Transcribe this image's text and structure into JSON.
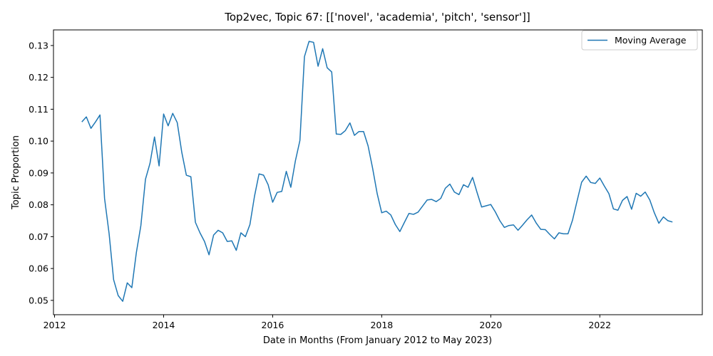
{
  "chart_data": {
    "type": "line",
    "title": "Top2vec, Topic 67: [['novel', 'academia', 'pitch', 'sensor']]",
    "xlabel": "Date in Months (From January 2012 to May 2023)",
    "ylabel": "Topic Proportion",
    "xlim": [
      2011.98,
      2023.88
    ],
    "ylim": [
      0.0455,
      0.1349
    ],
    "x_ticks": [
      2012,
      2014,
      2016,
      2018,
      2020,
      2022
    ],
    "y_ticks": [
      0.05,
      0.06,
      0.07,
      0.08,
      0.09,
      0.1,
      0.11,
      0.12,
      0.13
    ],
    "y_tick_labels": [
      "0.05",
      "0.06",
      "0.07",
      "0.08",
      "0.09",
      "0.10",
      "0.11",
      "0.12",
      "0.13"
    ],
    "grid": false,
    "legend": {
      "position": "top-right"
    },
    "colors": {
      "series": "#1f77b4"
    },
    "series": [
      {
        "name": "Moving Average",
        "x": [
          2012.5,
          2012.583,
          2012.667,
          2012.75,
          2012.833,
          2012.917,
          2013.0,
          2013.083,
          2013.167,
          2013.25,
          2013.333,
          2013.417,
          2013.5,
          2013.583,
          2013.667,
          2013.75,
          2013.833,
          2013.917,
          2014.0,
          2014.083,
          2014.167,
          2014.25,
          2014.333,
          2014.417,
          2014.5,
          2014.583,
          2014.667,
          2014.75,
          2014.833,
          2014.917,
          2015.0,
          2015.083,
          2015.167,
          2015.25,
          2015.333,
          2015.417,
          2015.5,
          2015.583,
          2015.667,
          2015.75,
          2015.833,
          2015.917,
          2016.0,
          2016.083,
          2016.167,
          2016.25,
          2016.333,
          2016.417,
          2016.5,
          2016.583,
          2016.667,
          2016.75,
          2016.833,
          2016.917,
          2017.0,
          2017.083,
          2017.167,
          2017.25,
          2017.333,
          2017.417,
          2017.5,
          2017.583,
          2017.667,
          2017.75,
          2017.833,
          2017.917,
          2018.0,
          2018.083,
          2018.167,
          2018.25,
          2018.333,
          2018.417,
          2018.5,
          2018.583,
          2018.667,
          2018.75,
          2018.833,
          2018.917,
          2019.0,
          2019.083,
          2019.167,
          2019.25,
          2019.333,
          2019.417,
          2019.5,
          2019.583,
          2019.667,
          2019.75,
          2019.833,
          2019.917,
          2020.0,
          2020.083,
          2020.167,
          2020.25,
          2020.333,
          2020.417,
          2020.5,
          2020.583,
          2020.667,
          2020.75,
          2020.833,
          2020.917,
          2021.0,
          2021.083,
          2021.167,
          2021.25,
          2021.333,
          2021.417,
          2021.5,
          2021.583,
          2021.667,
          2021.75,
          2021.833,
          2021.917,
          2022.0,
          2022.083,
          2022.167,
          2022.25,
          2022.333,
          2022.417,
          2022.5,
          2022.583,
          2022.667,
          2022.75,
          2022.833,
          2022.917,
          2023.0,
          2023.083,
          2023.167,
          2023.25,
          2023.333
        ],
        "y": [
          0.106,
          0.1076,
          0.104,
          0.106,
          0.1082,
          0.082,
          0.071,
          0.0565,
          0.0515,
          0.0497,
          0.0555,
          0.054,
          0.065,
          0.0735,
          0.088,
          0.093,
          0.1013,
          0.0922,
          0.1085,
          0.1048,
          0.1087,
          0.1058,
          0.0965,
          0.0893,
          0.0888,
          0.0745,
          0.0712,
          0.0685,
          0.0643,
          0.0705,
          0.072,
          0.0712,
          0.0685,
          0.0687,
          0.0657,
          0.0712,
          0.07,
          0.0738,
          0.0827,
          0.0897,
          0.0893,
          0.0863,
          0.0808,
          0.0839,
          0.0842,
          0.0905,
          0.0855,
          0.0938,
          0.1002,
          0.1265,
          0.1313,
          0.131,
          0.1235,
          0.129,
          0.123,
          0.1217,
          0.1022,
          0.1021,
          0.1033,
          0.1057,
          0.1018,
          0.103,
          0.103,
          0.0985,
          0.0915,
          0.0835,
          0.0775,
          0.078,
          0.0768,
          0.0738,
          0.0716,
          0.0745,
          0.0773,
          0.077,
          0.0777,
          0.0796,
          0.0815,
          0.0817,
          0.081,
          0.082,
          0.0852,
          0.0865,
          0.084,
          0.0832,
          0.0863,
          0.0855,
          0.0886,
          0.0838,
          0.0793,
          0.0797,
          0.0801,
          0.0778,
          0.075,
          0.0729,
          0.0735,
          0.0737,
          0.072,
          0.0736,
          0.0753,
          0.0768,
          0.0743,
          0.0723,
          0.0722,
          0.0707,
          0.0693,
          0.0712,
          0.0709,
          0.0709,
          0.0752,
          0.0812,
          0.0871,
          0.089,
          0.087,
          0.0867,
          0.0884,
          0.0859,
          0.0835,
          0.0787,
          0.0783,
          0.0814,
          0.0826,
          0.0786,
          0.0836,
          0.0827,
          0.084,
          0.0815,
          0.0775,
          0.0742,
          0.0762,
          0.075,
          0.0746
        ]
      }
    ]
  }
}
